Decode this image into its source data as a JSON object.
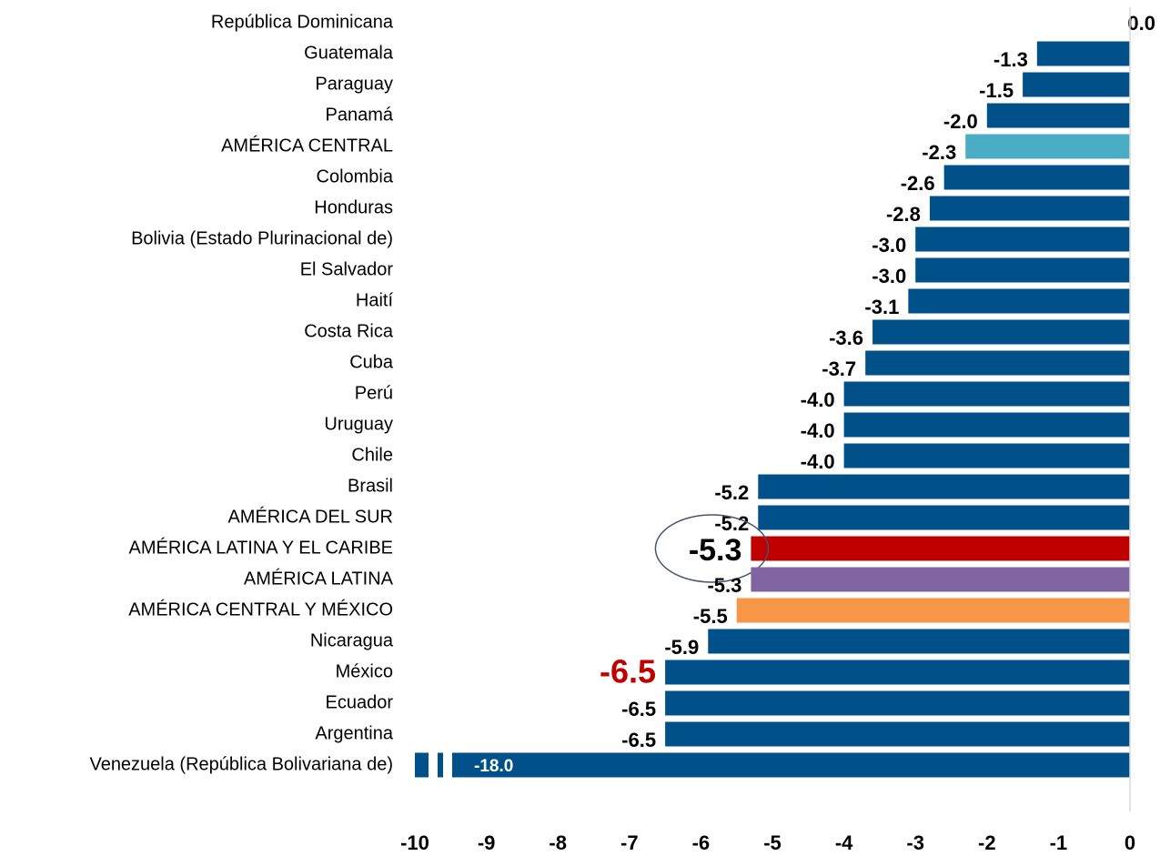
{
  "chart_data": {
    "type": "barh",
    "categories": [
      "República Dominicana",
      "Guatemala",
      "Paraguay",
      "Panamá",
      "AMÉRICA CENTRAL",
      "Colombia",
      "Honduras",
      "Bolivia (Estado Plurinacional de)",
      "El Salvador",
      "Haití",
      "Costa Rica",
      "Cuba",
      "Perú",
      "Uruguay",
      "Chile",
      "Brasil",
      "AMÉRICA DEL SUR",
      "AMÉRICA LATINA Y EL CARIBE",
      "AMÉRICA LATINA",
      "AMÉRICA CENTRAL Y MÉXICO",
      "Nicaragua",
      "México",
      "Ecuador",
      "Argentina",
      "Venezuela (República Bolivariana de)"
    ],
    "values": [
      0,
      -1.3,
      -1.5,
      -2,
      -2.3,
      -2.6,
      -2.8,
      -3,
      -3,
      -3.1,
      -3.6,
      -3.7,
      -4,
      -4,
      -4,
      -5.2,
      -5.2,
      -5.3,
      -5.3,
      -5.5,
      -5.9,
      -6.5,
      -6.5,
      -6.5,
      -18
    ],
    "value_labels": [
      "0.0",
      "-1.3",
      "-1.5",
      "-2.0",
      "-2.3",
      "-2.6",
      "-2.8",
      "-3.0",
      "-3.0",
      "-3.1",
      "-3.6",
      "-3.7",
      "-4.0",
      "-4.0",
      "-4.0",
      "-5.2",
      "-5.2",
      "-5.3",
      "-5.3",
      "-5.5",
      "-5.9",
      "-6.5",
      "-6.5",
      "-6.5",
      "-18.0"
    ],
    "colors": [
      "#00518a",
      "#00518a",
      "#00518a",
      "#00518a",
      "#4bacc6",
      "#00518a",
      "#00518a",
      "#00518a",
      "#00518a",
      "#00518a",
      "#00518a",
      "#00518a",
      "#00518a",
      "#00518a",
      "#00518a",
      "#00518a",
      "#00518a",
      "#c00000",
      "#8064a2",
      "#f79646",
      "#00518a",
      "#00518a",
      "#00518a",
      "#00518a",
      "#00518a"
    ],
    "xlim": [
      -10,
      0
    ],
    "xticks": [
      -10,
      -9,
      -8,
      -7,
      -6,
      -5,
      -4,
      -3,
      -2,
      -1,
      0
    ]
  }
}
